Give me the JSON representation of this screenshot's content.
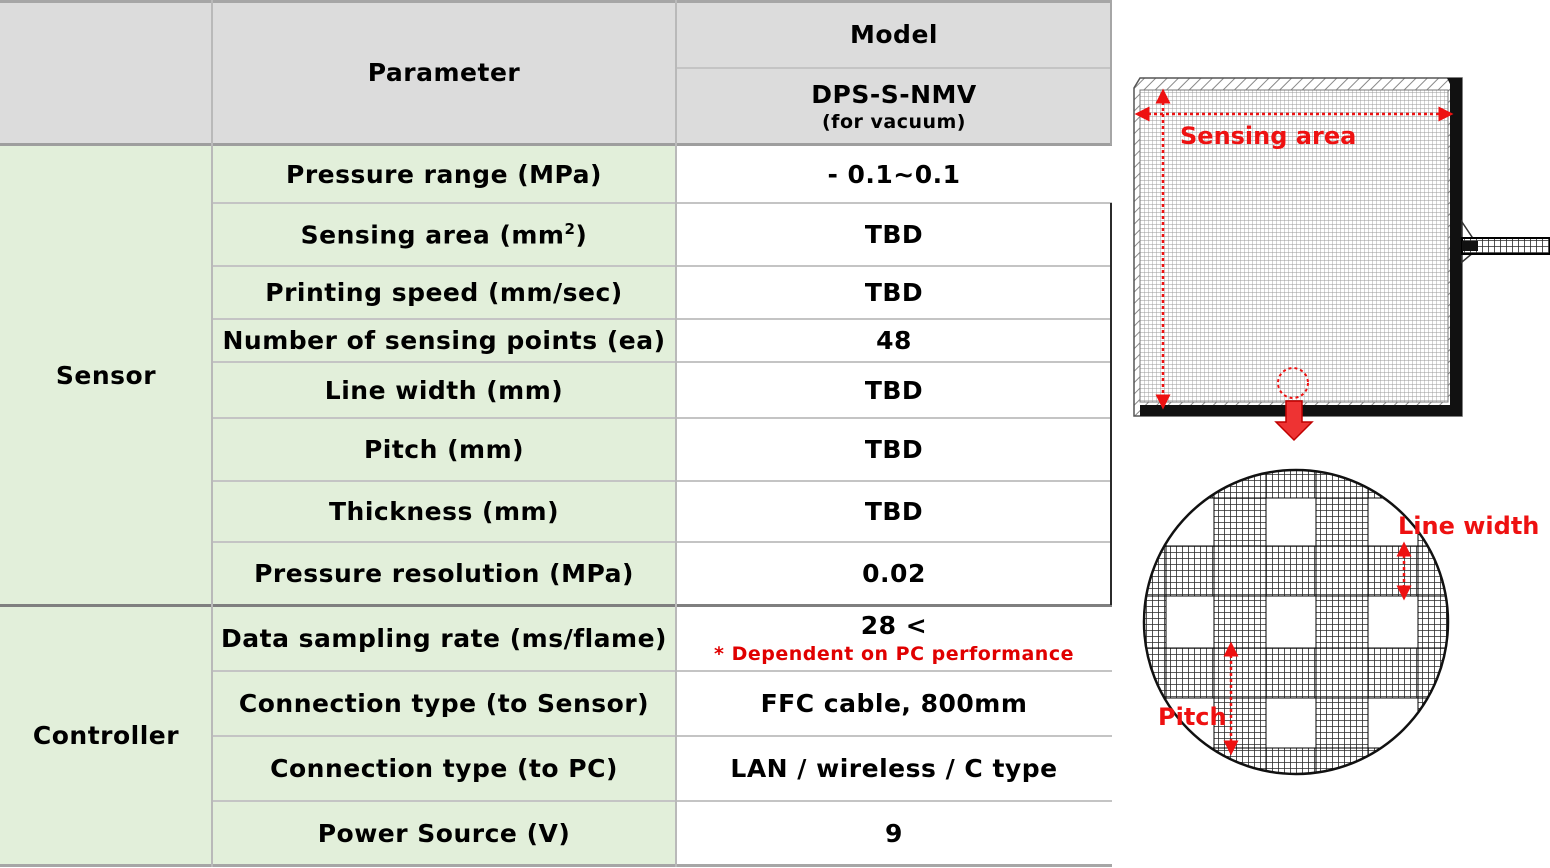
{
  "table": {
    "header": {
      "parameter": "Parameter",
      "model": "Model",
      "model_name": "DPS-S-NMV",
      "model_note": "(for vacuum)"
    },
    "groups": {
      "sensor": "Sensor",
      "controller": "Controller"
    },
    "rows": [
      {
        "param": "Pressure range (MPa)",
        "value": "- 0.1~0.1"
      },
      {
        "param_pre": "Sensing area (mm",
        "param_sup": "2",
        "param_post": ")",
        "value": "TBD"
      },
      {
        "param": "Printing speed (mm/sec)",
        "value": "TBD"
      },
      {
        "param": "Number of sensing points (ea)",
        "value": "48"
      },
      {
        "param": "Line width (mm)",
        "value": "TBD"
      },
      {
        "param": "Pitch (mm)",
        "value": "TBD"
      },
      {
        "param": "Thickness (mm)",
        "value": "TBD"
      },
      {
        "param": "Pressure resolution (MPa)",
        "value": "0.02"
      },
      {
        "param": "Data sampling rate (ms/flame)",
        "value": "28 <",
        "note": "* Dependent on PC performance"
      },
      {
        "param": "Connection type (to Sensor)",
        "value": "FFC cable, 800mm"
      },
      {
        "param": "Connection type (to PC)",
        "value": "LAN / wireless / C type"
      },
      {
        "param": "Power Source (V)",
        "value": "9"
      }
    ]
  },
  "diagram": {
    "sensing_area_label": "Sensing area",
    "line_width_label": "Line width",
    "pitch_label": "Pitch",
    "colors": {
      "annotation": "#ee1111",
      "mesh": "#2a2a2a"
    }
  }
}
